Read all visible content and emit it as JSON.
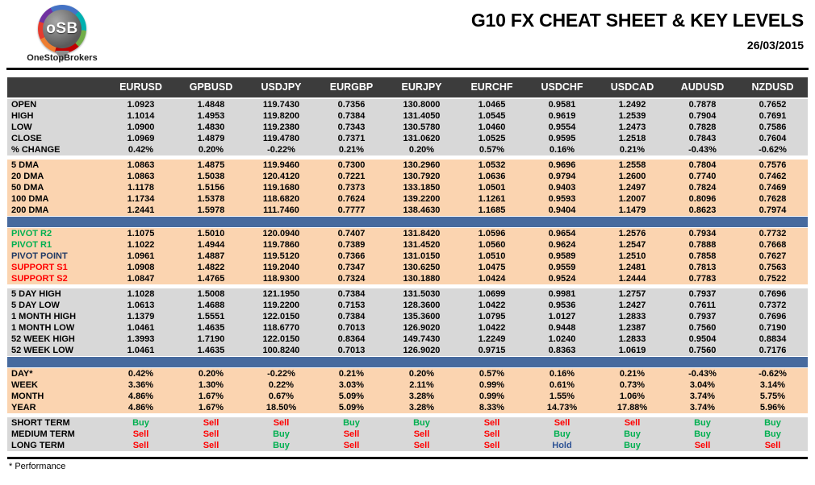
{
  "header": {
    "title": "G10 FX CHEAT SHEET & KEY LEVELS",
    "date": "26/03/2015",
    "logo": {
      "text": "oSB",
      "subtext": "OneStopBrokers"
    }
  },
  "colors": {
    "buy": "#00b050",
    "sell": "#ff0000",
    "hold": "#2e5395",
    "pivot_r": "#00b050",
    "pivot_point": "#1f3864",
    "support": "#ff0000",
    "section_gray": "#d8d8d8",
    "section_peach": "#fbd4b0",
    "divider_blue": "#476a9e",
    "header_dark": "#3c3c3c"
  },
  "table": {
    "columns": [
      "EURUSD",
      "GPBUSD",
      "USDJPY",
      "EURGBP",
      "EURJPY",
      "EURCHF",
      "USDCHF",
      "USDCAD",
      "AUDUSD",
      "NZDUSD"
    ],
    "sections": [
      {
        "kind": "rows",
        "name": "ohlc",
        "bg": "gray",
        "rows": [
          {
            "label": "OPEN",
            "values": [
              "1.0923",
              "1.4848",
              "119.7430",
              "0.7356",
              "130.8000",
              "1.0465",
              "0.9581",
              "1.2492",
              "0.7878",
              "0.7652"
            ]
          },
          {
            "label": "HIGH",
            "values": [
              "1.1014",
              "1.4953",
              "119.8200",
              "0.7384",
              "131.4050",
              "1.0545",
              "0.9619",
              "1.2539",
              "0.7904",
              "0.7691"
            ]
          },
          {
            "label": "LOW",
            "values": [
              "1.0900",
              "1.4830",
              "119.2380",
              "0.7343",
              "130.5780",
              "1.0460",
              "0.9554",
              "1.2473",
              "0.7828",
              "0.7586"
            ]
          },
          {
            "label": "CLOSE",
            "values": [
              "1.0969",
              "1.4879",
              "119.4780",
              "0.7371",
              "131.0620",
              "1.0525",
              "0.9595",
              "1.2518",
              "0.7843",
              "0.7604"
            ]
          },
          {
            "label": "% CHANGE",
            "values": [
              "0.42%",
              "0.20%",
              "-0.22%",
              "0.21%",
              "0.20%",
              "0.57%",
              "0.16%",
              "0.21%",
              "-0.43%",
              "-0.62%"
            ]
          }
        ]
      },
      {
        "kind": "gap"
      },
      {
        "kind": "rows",
        "name": "moving-averages",
        "bg": "peach",
        "rows": [
          {
            "label": "5 DMA",
            "values": [
              "1.0863",
              "1.4875",
              "119.9460",
              "0.7300",
              "130.2960",
              "1.0532",
              "0.9696",
              "1.2558",
              "0.7804",
              "0.7576"
            ]
          },
          {
            "label": "20 DMA",
            "values": [
              "1.0863",
              "1.5038",
              "120.4120",
              "0.7221",
              "130.7920",
              "1.0636",
              "0.9794",
              "1.2600",
              "0.7740",
              "0.7462"
            ]
          },
          {
            "label": "50 DMA",
            "values": [
              "1.1178",
              "1.5156",
              "119.1680",
              "0.7373",
              "133.1850",
              "1.0501",
              "0.9403",
              "1.2497",
              "0.7824",
              "0.7469"
            ]
          },
          {
            "label": "100 DMA",
            "values": [
              "1.1734",
              "1.5378",
              "118.6820",
              "0.7624",
              "139.2200",
              "1.1261",
              "0.9593",
              "1.2007",
              "0.8096",
              "0.7628"
            ]
          },
          {
            "label": "200 DMA",
            "values": [
              "1.2441",
              "1.5978",
              "111.7460",
              "0.7777",
              "138.4630",
              "1.1685",
              "0.9404",
              "1.1479",
              "0.8623",
              "0.7974"
            ]
          }
        ]
      },
      {
        "kind": "divider"
      },
      {
        "kind": "rows",
        "name": "pivots",
        "bg": "peach",
        "rows": [
          {
            "label": "PIVOT R2",
            "label_color": "pivot_r",
            "values": [
              "1.1075",
              "1.5010",
              "120.0940",
              "0.7407",
              "131.8420",
              "1.0596",
              "0.9654",
              "1.2576",
              "0.7934",
              "0.7732"
            ]
          },
          {
            "label": "PIVOT R1",
            "label_color": "pivot_r",
            "values": [
              "1.1022",
              "1.4944",
              "119.7860",
              "0.7389",
              "131.4520",
              "1.0560",
              "0.9624",
              "1.2547",
              "0.7888",
              "0.7668"
            ]
          },
          {
            "label": "PIVOT POINT",
            "label_color": "pivot_point",
            "values": [
              "1.0961",
              "1.4887",
              "119.5120",
              "0.7366",
              "131.0150",
              "1.0510",
              "0.9589",
              "1.2510",
              "0.7858",
              "0.7627"
            ]
          },
          {
            "label": "SUPPORT S1",
            "label_color": "support",
            "values": [
              "1.0908",
              "1.4822",
              "119.2040",
              "0.7347",
              "130.6250",
              "1.0475",
              "0.9559",
              "1.2481",
              "0.7813",
              "0.7563"
            ]
          },
          {
            "label": "SUPPORT S2",
            "label_color": "support",
            "values": [
              "1.0847",
              "1.4765",
              "118.9300",
              "0.7324",
              "130.1880",
              "1.0424",
              "0.9524",
              "1.2444",
              "0.7783",
              "0.7522"
            ]
          }
        ]
      },
      {
        "kind": "gap"
      },
      {
        "kind": "rows",
        "name": "ranges",
        "bg": "gray",
        "rows": [
          {
            "label": "5 DAY HIGH",
            "values": [
              "1.1028",
              "1.5008",
              "121.1950",
              "0.7384",
              "131.5030",
              "1.0699",
              "0.9981",
              "1.2757",
              "0.7937",
              "0.7696"
            ]
          },
          {
            "label": "5 DAY LOW",
            "values": [
              "1.0613",
              "1.4688",
              "119.2200",
              "0.7153",
              "128.3600",
              "1.0422",
              "0.9536",
              "1.2427",
              "0.7611",
              "0.7372"
            ]
          },
          {
            "label": "1 MONTH HIGH",
            "values": [
              "1.1379",
              "1.5551",
              "122.0150",
              "0.7384",
              "135.3600",
              "1.0795",
              "1.0127",
              "1.2833",
              "0.7937",
              "0.7696"
            ]
          },
          {
            "label": "1 MONTH LOW",
            "values": [
              "1.0461",
              "1.4635",
              "118.6770",
              "0.7013",
              "126.9020",
              "1.0422",
              "0.9448",
              "1.2387",
              "0.7560",
              "0.7190"
            ]
          },
          {
            "label": "52 WEEK HIGH",
            "values": [
              "1.3993",
              "1.7190",
              "122.0150",
              "0.8364",
              "149.7430",
              "1.2249",
              "1.0240",
              "1.2833",
              "0.9504",
              "0.8834"
            ]
          },
          {
            "label": "52 WEEK LOW",
            "values": [
              "1.0461",
              "1.4635",
              "100.8240",
              "0.7013",
              "126.9020",
              "0.9715",
              "0.8363",
              "1.0619",
              "0.7560",
              "0.7176"
            ]
          }
        ]
      },
      {
        "kind": "divider"
      },
      {
        "kind": "rows",
        "name": "performance",
        "bg": "peach",
        "rows": [
          {
            "label": "DAY*",
            "values": [
              "0.42%",
              "0.20%",
              "-0.22%",
              "0.21%",
              "0.20%",
              "0.57%",
              "0.16%",
              "0.21%",
              "-0.43%",
              "-0.62%"
            ]
          },
          {
            "label": "WEEK",
            "values": [
              "3.36%",
              "1.30%",
              "0.22%",
              "3.03%",
              "2.11%",
              "0.99%",
              "0.61%",
              "0.73%",
              "3.04%",
              "3.14%"
            ]
          },
          {
            "label": "MONTH",
            "values": [
              "4.86%",
              "1.67%",
              "0.67%",
              "5.09%",
              "3.28%",
              "0.99%",
              "1.55%",
              "1.06%",
              "3.74%",
              "5.75%"
            ]
          },
          {
            "label": "YEAR",
            "values": [
              "4.86%",
              "1.67%",
              "18.50%",
              "5.09%",
              "3.28%",
              "8.33%",
              "14.73%",
              "17.88%",
              "3.74%",
              "5.96%"
            ]
          }
        ]
      },
      {
        "kind": "gap"
      },
      {
        "kind": "rows",
        "name": "signals",
        "bg": "gray",
        "signal": true,
        "rows": [
          {
            "label": "SHORT TERM",
            "values": [
              "Buy",
              "Sell",
              "Sell",
              "Buy",
              "Buy",
              "Sell",
              "Sell",
              "Sell",
              "Buy",
              "Buy"
            ]
          },
          {
            "label": "MEDIUM TERM",
            "values": [
              "Sell",
              "Sell",
              "Buy",
              "Sell",
              "Sell",
              "Sell",
              "Buy",
              "Buy",
              "Buy",
              "Buy"
            ]
          },
          {
            "label": "LONG TERM",
            "values": [
              "Sell",
              "Sell",
              "Buy",
              "Sell",
              "Sell",
              "Sell",
              "Hold",
              "Buy",
              "Sell",
              "Sell"
            ]
          }
        ]
      }
    ]
  },
  "footer": {
    "note": "* Performance"
  }
}
